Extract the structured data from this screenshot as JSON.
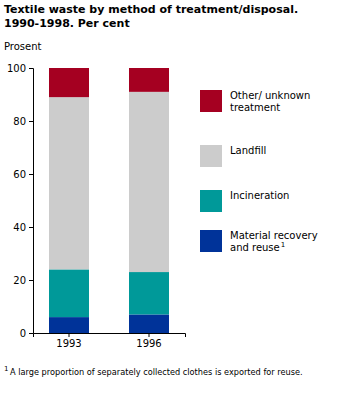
{
  "chart_data": {
    "type": "bar",
    "title": "Textile waste by method of treatment/disposal. 1990-1998. Per cent",
    "y_label": "Prosent",
    "categories": [
      "1993",
      "1996"
    ],
    "series": [
      {
        "name": "Material recovery and reuse",
        "color": "#003399",
        "values": [
          6,
          7
        ]
      },
      {
        "name": "Incineration",
        "color": "#009999",
        "values": [
          18,
          16
        ]
      },
      {
        "name": "Landfill",
        "color": "#cccccc",
        "values": [
          65,
          68
        ]
      },
      {
        "name": "Other/ unknown treatment",
        "color": "#a50021",
        "values": [
          11,
          9
        ]
      }
    ],
    "ylim": [
      0,
      100
    ],
    "yticks": [
      0,
      20,
      40,
      60,
      80,
      100
    ],
    "stacked": true,
    "grid": false,
    "legend": "right",
    "footnote_marker": "1",
    "footnote": "A large proportion of separately collected clothes is exported for reuse."
  }
}
